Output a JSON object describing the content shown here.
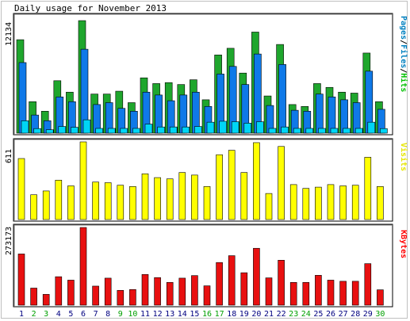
{
  "title": "Daily usage for November 2013",
  "legend_top": [
    {
      "text": "Pages",
      "color": "#0080c0"
    },
    {
      "text": "/",
      "color": "#000000"
    },
    {
      "text": "Files",
      "color": "#0080c0"
    },
    {
      "text": "/",
      "color": "#000000"
    },
    {
      "text": "Hits",
      "color": "#00c000"
    }
  ],
  "legend_mid": {
    "text": "Visits",
    "color": "#e6e600"
  },
  "legend_bot": {
    "text": "KBytes",
    "color": "#ff0000"
  },
  "colors": {
    "hits": "#1fa62d",
    "files": "#0f79e8",
    "pages": "#00d5f5",
    "visits": "#ffff00",
    "kbytes": "#e81010",
    "weekday_label": "#000080",
    "weekend_label": "#00a000"
  },
  "chart_data": [
    {
      "type": "bar",
      "name": "usage-top",
      "ymax_label": "12134",
      "ylim": [
        0,
        12134
      ],
      "categories": [
        "1",
        "2",
        "3",
        "4",
        "5",
        "6",
        "7",
        "8",
        "9",
        "10",
        "11",
        "12",
        "13",
        "14",
        "15",
        "16",
        "17",
        "18",
        "19",
        "20",
        "21",
        "22",
        "23",
        "24",
        "25",
        "26",
        "27",
        "28",
        "29",
        "30"
      ],
      "series": [
        {
          "name": "Hits",
          "values": [
            9800,
            3300,
            2300,
            5500,
            4300,
            11800,
            4100,
            4100,
            4400,
            3200,
            5800,
            5200,
            5300,
            5100,
            5600,
            3500,
            8200,
            8900,
            6300,
            10600,
            3900,
            9300,
            3000,
            2800,
            5200,
            4800,
            4300,
            4200,
            8400,
            3300
          ]
        },
        {
          "name": "Files",
          "values": [
            7400,
            1900,
            1300,
            3800,
            3300,
            8800,
            3000,
            3200,
            2600,
            2300,
            4300,
            4000,
            3400,
            4000,
            4300,
            2800,
            6200,
            7000,
            5100,
            8300,
            2900,
            7200,
            2400,
            2300,
            4100,
            3800,
            3500,
            3200,
            6500,
            2500
          ]
        },
        {
          "name": "Pages",
          "values": [
            1300,
            480,
            360,
            700,
            620,
            1400,
            500,
            500,
            500,
            500,
            950,
            650,
            650,
            650,
            700,
            1150,
            1250,
            1200,
            1050,
            1200,
            500,
            650,
            500,
            500,
            500,
            500,
            500,
            500,
            1150,
            480
          ]
        }
      ]
    },
    {
      "type": "bar",
      "name": "visits",
      "ymax_label": "611",
      "ylim": [
        0,
        611
      ],
      "categories": [
        "1",
        "2",
        "3",
        "4",
        "5",
        "6",
        "7",
        "8",
        "9",
        "10",
        "11",
        "12",
        "13",
        "14",
        "15",
        "16",
        "17",
        "18",
        "19",
        "20",
        "21",
        "22",
        "23",
        "24",
        "25",
        "26",
        "27",
        "28",
        "29",
        "30"
      ],
      "series": [
        {
          "name": "Visits",
          "values": [
            480,
            195,
            225,
            310,
            265,
            611,
            295,
            290,
            270,
            260,
            360,
            330,
            320,
            370,
            350,
            260,
            510,
            545,
            370,
            605,
            205,
            575,
            275,
            245,
            255,
            275,
            265,
            270,
            490,
            260
          ]
        }
      ]
    },
    {
      "type": "bar",
      "name": "kbytes",
      "ymax_label": "273173",
      "ylim": [
        0,
        273173
      ],
      "categories": [
        "1",
        "2",
        "3",
        "4",
        "5",
        "6",
        "7",
        "8",
        "9",
        "10",
        "11",
        "12",
        "13",
        "14",
        "15",
        "16",
        "17",
        "18",
        "19",
        "20",
        "21",
        "22",
        "23",
        "24",
        "25",
        "26",
        "27",
        "28",
        "29",
        "30"
      ],
      "series": [
        {
          "name": "KBytes",
          "values": [
            180000,
            60000,
            38000,
            100000,
            88000,
            273173,
            67000,
            95000,
            52000,
            55000,
            108000,
            97000,
            80000,
            95000,
            104000,
            68000,
            150000,
            174000,
            114000,
            200000,
            96000,
            158000,
            80000,
            80000,
            105000,
            88000,
            84000,
            84000,
            146000,
            54000
          ]
        }
      ]
    }
  ]
}
